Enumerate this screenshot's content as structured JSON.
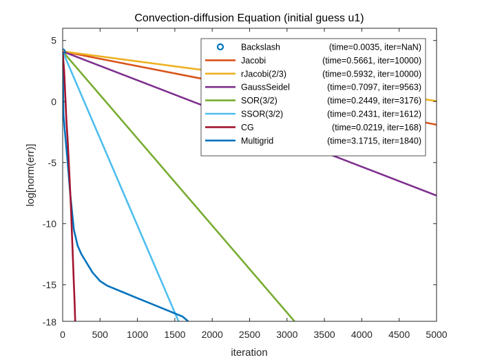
{
  "chart_data": {
    "type": "line",
    "title": "Convection-diffusion Equation (initial guess u1)",
    "xlabel": "iteration",
    "ylabel": "log[norm(err)]",
    "xlim": [
      0,
      5000
    ],
    "ylim": [
      -18,
      6
    ],
    "xticks": [
      0,
      500,
      1000,
      1500,
      2000,
      2500,
      3000,
      3500,
      4000,
      4500,
      5000
    ],
    "yticks": [
      5,
      0,
      -5,
      -10,
      -15
    ],
    "grid": false,
    "legend_position": "top-right",
    "series": [
      {
        "name": "Backslash",
        "info": "(time=0.0035, iter=NaN)",
        "color": "#0072BD",
        "style": "marker",
        "points": [
          [
            0,
            4.1
          ]
        ]
      },
      {
        "name": "Jacobi",
        "info": "(time=0.5661, iter=10000)",
        "color": "#D95319",
        "style": "line",
        "points": [
          [
            0,
            4.1
          ],
          [
            5000,
            -1.9
          ]
        ]
      },
      {
        "name": "rJacobi(2/3)",
        "info": "(time=0.5932, iter=10000)",
        "color": "#EDB120",
        "style": "line",
        "points": [
          [
            0,
            4.1
          ],
          [
            5000,
            0.05
          ]
        ]
      },
      {
        "name": "GaussSeidel",
        "info": "(time=0.7097, iter=9563)",
        "color": "#7E2F8E",
        "style": "line",
        "points": [
          [
            0,
            4.1
          ],
          [
            5000,
            -7.7
          ]
        ]
      },
      {
        "name": "SOR(3/2)",
        "info": "(time=0.2449, iter=3176)",
        "color": "#77AC30",
        "style": "line",
        "points": [
          [
            0,
            4.1
          ],
          [
            3100,
            -18
          ]
        ]
      },
      {
        "name": "SSOR(3/2)",
        "info": "(time=0.2431, iter=1612)",
        "color": "#4DBEEE",
        "style": "line",
        "points": [
          [
            0,
            4.1
          ],
          [
            1550,
            -18
          ]
        ]
      },
      {
        "name": "CG",
        "info": "(time=0.0219, iter=168)",
        "color": "#A2142F",
        "style": "line",
        "points": [
          [
            0,
            4.1
          ],
          [
            20,
            2.5
          ],
          [
            50,
            -1.5
          ],
          [
            70,
            -3.5
          ],
          [
            90,
            -6
          ],
          [
            110,
            -8.5
          ],
          [
            125,
            -11
          ],
          [
            140,
            -13.3
          ],
          [
            150,
            -15
          ],
          [
            160,
            -16.5
          ],
          [
            168,
            -18
          ]
        ]
      },
      {
        "name": "Multigrid",
        "info": "(time=3.1715, iter=1840)",
        "color": "#0072BD",
        "style": "line",
        "points": [
          [
            0,
            4.1
          ],
          [
            10,
            -1
          ],
          [
            30,
            -2.5
          ],
          [
            60,
            -4.5
          ],
          [
            100,
            -7.5
          ],
          [
            150,
            -10.5
          ],
          [
            200,
            -11.8
          ],
          [
            250,
            -12.5
          ],
          [
            300,
            -13
          ],
          [
            400,
            -14
          ],
          [
            500,
            -14.7
          ],
          [
            600,
            -15.1
          ],
          [
            800,
            -15.6
          ],
          [
            1000,
            -16.1
          ],
          [
            1200,
            -16.6
          ],
          [
            1400,
            -17.1
          ],
          [
            1600,
            -17.6
          ],
          [
            1680,
            -18
          ]
        ]
      }
    ]
  }
}
